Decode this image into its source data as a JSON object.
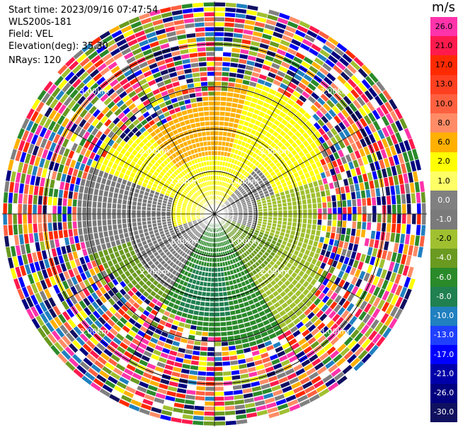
{
  "meta": {
    "start_time": "Start time: 2023/09/16 07:47:54",
    "instrument": "WLS200s-181",
    "field": "Field: VEL",
    "elevation": "Elevation(deg): 35.30",
    "nrays": "NRays: 120"
  },
  "colorbar": {
    "unit": "m/s",
    "labels": [
      "26.0",
      "21.0",
      "17.0",
      "13.0",
      "10.0",
      "8.0",
      "6.0",
      "2.0",
      "1.0",
      "0.0",
      "-1.0",
      "-2.0",
      "-4.0",
      "-6.0",
      "-8.0",
      "-10.0",
      "-13.0",
      "-17.0",
      "-21.0",
      "-26.0",
      "-30.0"
    ],
    "colors": [
      "#ff33aa",
      "#ff1a4d",
      "#ff2a00",
      "#ff4020",
      "#ff6040",
      "#ff8c66",
      "#ffb000",
      "#ffff00",
      "#ffff66",
      "#808080",
      "#7a7a7a",
      "#a0c030",
      "#6a9a20",
      "#2a8a2a",
      "#208050",
      "#2080c0",
      "#2040ff",
      "#0000ff",
      "#0000aa",
      "#000080",
      "#101060"
    ]
  },
  "chart_data": {
    "type": "ppi",
    "field": "VEL",
    "units": "m/s",
    "nrays": 120,
    "elevation_deg": 35.3,
    "range_ring_labels": [
      "1.00km",
      "1.00km",
      "1.00km",
      "1.00km",
      "2.00km",
      "2.00km",
      "2.00km",
      "2.00km",
      "3.00km",
      "3.00km",
      "3.00km",
      "3.00km"
    ],
    "velocity_regions": [
      {
        "sector": "north",
        "value": 6.0
      },
      {
        "sector": "northwest",
        "value": 2.0
      },
      {
        "sector": "east",
        "value": -2.0
      },
      {
        "sector": "west",
        "value": 0.0
      },
      {
        "sector": "south",
        "value": -6.0
      },
      {
        "sector": "southeast",
        "value": -8.0
      },
      {
        "sector": "outer_ring",
        "value": "noise"
      }
    ]
  }
}
